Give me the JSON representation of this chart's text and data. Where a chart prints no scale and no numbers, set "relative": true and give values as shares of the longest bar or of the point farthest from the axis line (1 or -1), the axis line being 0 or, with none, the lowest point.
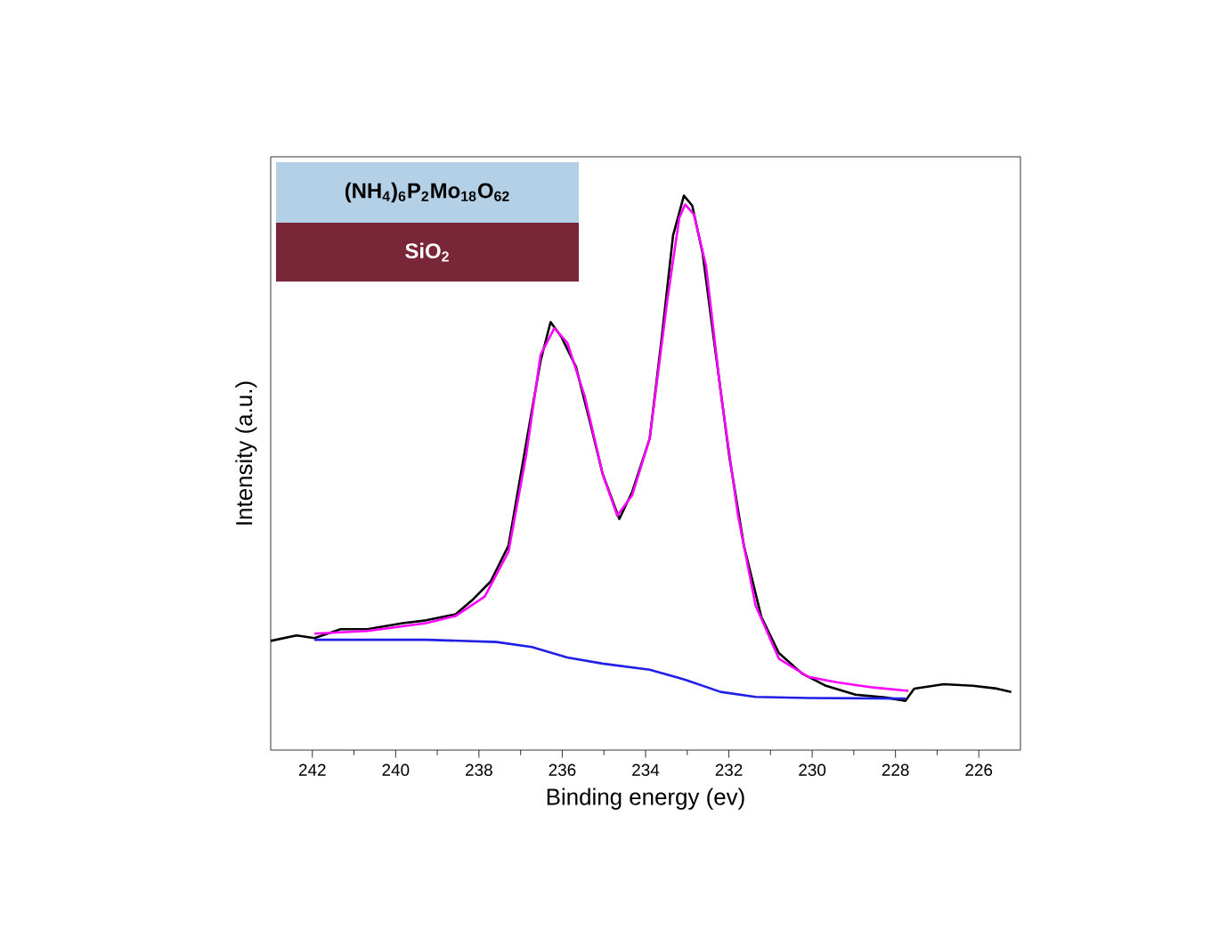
{
  "chart_data": {
    "type": "line",
    "relative": true,
    "xlabel": "Binding energy (ev)",
    "ylabel": "Intensity (a.u.)",
    "xlim": [
      243,
      225
    ],
    "xticks": [
      242,
      240,
      238,
      236,
      234,
      232,
      230,
      228,
      226
    ],
    "tick_labels": "x",
    "legend": false,
    "grid": false,
    "annotations": [
      "(NH$_{4}$)$_{6}$P$_{2}$Mo$_{18}$O$_{62}$",
      "SiO$_{2}$"
    ],
    "series": [
      {
        "color": "#000000",
        "x": [
          243.0,
          242.38,
          241.95,
          241.32,
          240.68,
          239.83,
          239.27,
          238.56,
          238.14,
          237.72,
          237.29,
          236.87,
          236.52,
          236.28,
          236.02,
          235.67,
          235.31,
          235.03,
          234.63,
          234.32,
          233.9,
          233.61,
          233.34,
          233.08,
          232.88,
          232.63,
          232.35,
          231.99,
          231.64,
          231.22,
          230.8,
          230.24,
          229.67,
          228.96,
          228.25,
          227.76,
          227.55,
          226.84,
          226.14,
          225.57,
          225.22
        ],
        "values": [
          0.197,
          0.207,
          0.202,
          0.218,
          0.218,
          0.229,
          0.234,
          0.245,
          0.272,
          0.304,
          0.369,
          0.552,
          0.702,
          0.772,
          0.745,
          0.691,
          0.584,
          0.498,
          0.417,
          0.466,
          0.562,
          0.745,
          0.928,
          1.0,
          0.982,
          0.896,
          0.735,
          0.53,
          0.369,
          0.24,
          0.175,
          0.138,
          0.116,
          0.1,
          0.095,
          0.089,
          0.111,
          0.119,
          0.116,
          0.111,
          0.105
        ]
      },
      {
        "color": "#ff00ff",
        "x": [
          241.95,
          240.68,
          239.27,
          238.56,
          237.86,
          237.29,
          236.87,
          236.52,
          236.19,
          235.88,
          235.46,
          235.03,
          234.68,
          234.32,
          233.9,
          233.48,
          233.19,
          233.05,
          232.84,
          232.55,
          232.2,
          231.78,
          231.36,
          230.8,
          230.09,
          229.39,
          228.54,
          227.69
        ],
        "values": [
          0.21,
          0.215,
          0.229,
          0.242,
          0.277,
          0.358,
          0.53,
          0.713,
          0.761,
          0.735,
          0.638,
          0.498,
          0.423,
          0.46,
          0.562,
          0.81,
          0.96,
          0.984,
          0.966,
          0.874,
          0.648,
          0.423,
          0.261,
          0.165,
          0.132,
          0.122,
          0.113,
          0.107
        ]
      },
      {
        "color": "#1f1fe6",
        "x": [
          241.95,
          239.27,
          237.58,
          236.73,
          235.88,
          235.03,
          233.9,
          233.05,
          232.2,
          231.36,
          230.09,
          227.76
        ],
        "values": [
          0.199,
          0.199,
          0.195,
          0.186,
          0.167,
          0.156,
          0.145,
          0.127,
          0.105,
          0.096,
          0.094,
          0.093
        ]
      }
    ]
  }
}
